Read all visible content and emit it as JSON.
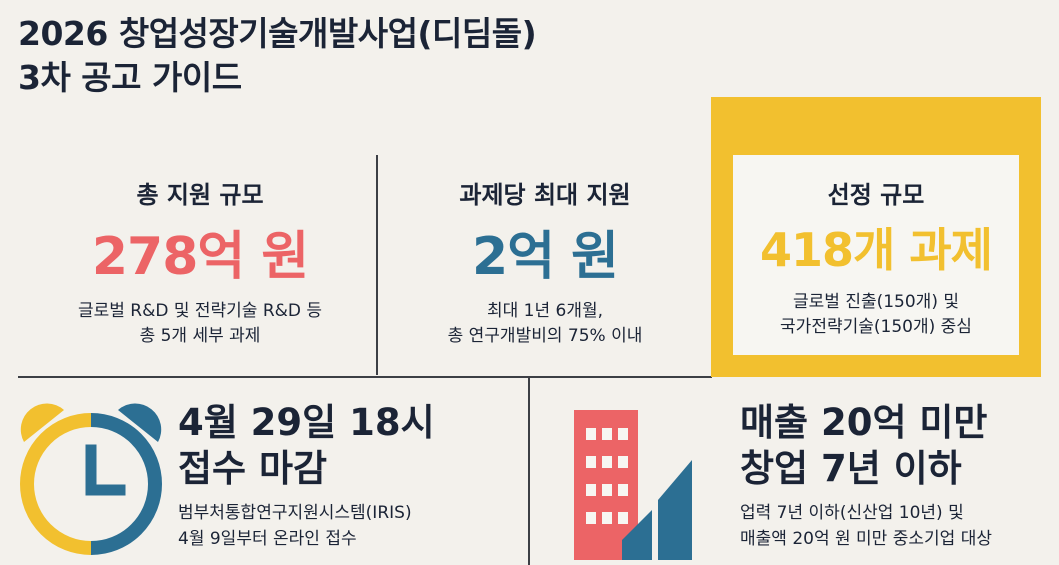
{
  "title": {
    "line1": "2026 창업성장기술개발사업(디딤돌)",
    "line2": "3차 공고 가이드"
  },
  "colors": {
    "red": "#ec6466",
    "blue": "#2c6f93",
    "yellow": "#f2c02f",
    "navy": "#1b2436",
    "background": "#f3f1ec"
  },
  "stats": {
    "total": {
      "label": "총 지원 규모",
      "value": "278억 원",
      "desc1": "글로벌 R&D 및 전략기술 R&D 등",
      "desc2": "총 5개 세부 과제"
    },
    "per_project": {
      "label": "과제당 최대 지원",
      "value": "2억 원",
      "desc1": "최대 1년 6개월,",
      "desc2": "총 연구개발비의 75% 이내"
    },
    "selection": {
      "label": "선정 규모",
      "value": "418개 과제",
      "desc1": "글로벌 진출(150개) 및",
      "desc2": "국가전략기술(150개) 중심"
    }
  },
  "deadline": {
    "icon": "alarm-clock-icon",
    "head1": "4월 29일 18시",
    "head2": "접수 마감",
    "desc1": "범부처통합연구지원시스템(IRIS)",
    "desc2": "4월 9일부터 온라인 접수"
  },
  "eligibility": {
    "icon": "building-growth-icon",
    "head1": "매출 20억 미만",
    "head2": "창업 7년 이하",
    "desc1": "업력 7년 이하(신산업 10년) 및",
    "desc2": "매출액 20억 원 미만 중소기업 대상"
  }
}
